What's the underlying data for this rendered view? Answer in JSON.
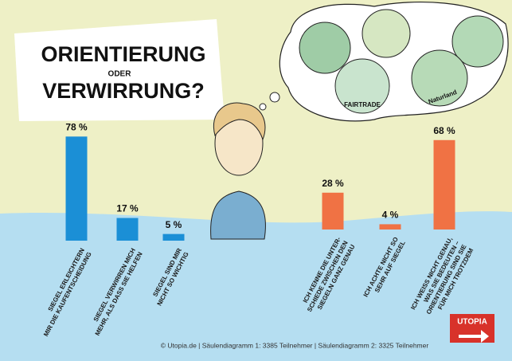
{
  "header": {
    "title_lines": [
      "ORIENTIERUNG",
      "ODER",
      "VERWIRRUNG?"
    ]
  },
  "chart_data": [
    {
      "type": "bar",
      "categories": [
        "SIEGEL ERLEICHTERN\nMIR DIE KAUFENTSCHEIDUNG",
        "SIEGEL VERWIRREN MICH\nMEHR, ALS DASS SIE HELFEN",
        "SIEGEL SIND MIR\nNICHT SO WICHTIG"
      ],
      "values": [
        78,
        17,
        5
      ],
      "value_labels": [
        "78 %",
        "17 %",
        "5 %"
      ],
      "color": "#1b8fd6",
      "ylim": [
        0,
        80
      ]
    },
    {
      "type": "bar",
      "categories": [
        "ICH KENNE DIE UNTER-\nSCHIEDE ZWISCHEN DEN\nSIEGELN GANZ GENAU",
        "ICH ACHTE NICHT SO\nSEHR AUF SIEGEL",
        "ICH WEISS NICHT GENAU,\nWAS SIE BEDEUTEN –\nORIENTIERUNG SIND SIE\nFÜR MICH TROTZDEM"
      ],
      "values": [
        28,
        4,
        68
      ],
      "value_labels": [
        "28 %",
        "4 %",
        "68 %"
      ],
      "color": "#f07244",
      "ylim": [
        0,
        80
      ]
    }
  ],
  "illustration": {
    "seal_labels": [
      "FAIRTRADE",
      "Naturland"
    ]
  },
  "logo": "UTOPIA",
  "footer": "© Utopia.de | Säulendiagramm 1:  3385 Teilnehmer | Säulendiagramm 2:  3325 Teilnehmer"
}
